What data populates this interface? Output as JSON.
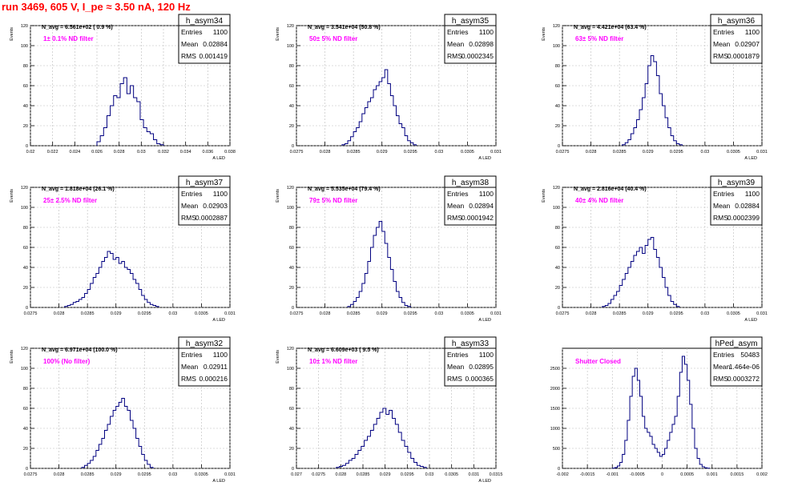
{
  "page": {
    "title": "run 3469,   605 V, I_pe ≈ 3.50 nA, 120 Hz"
  },
  "chart_data": [
    {
      "type": "histogram",
      "title": "h_asym34",
      "nav": "N_avg = 6.561e+02 ( 0.9 %)",
      "annotation": "1± 0.1% ND filter",
      "annotation_color": "#ff00ff",
      "stats": [
        [
          "Entries",
          "1100"
        ],
        [
          "Mean",
          "0.02884"
        ],
        [
          "RMS",
          "0.001419"
        ]
      ],
      "xlabel": "A_LED",
      "ylabel": "Events",
      "xlim": [
        0.02,
        0.038
      ],
      "ylim": [
        0,
        120
      ],
      "xticks": [
        0.02,
        0.022,
        0.024,
        0.026,
        0.028,
        0.03,
        0.032,
        0.034,
        0.036,
        0.038
      ],
      "xticklabels": [
        "0.02",
        "0.022",
        "0.024",
        "0.026",
        "0.028",
        "0.03",
        "0.032",
        "0.034",
        "0.036",
        "0.038"
      ],
      "yticks": [
        0,
        20,
        40,
        60,
        80,
        100,
        120
      ],
      "bins_x": [
        0.026,
        0.0263,
        0.0266,
        0.0269,
        0.0272,
        0.0275,
        0.0278,
        0.0281,
        0.0284,
        0.0287,
        0.029,
        0.0293,
        0.0296,
        0.0299,
        0.0302,
        0.0305,
        0.0308,
        0.0311,
        0.0314,
        0.0317
      ],
      "counts": [
        4,
        10,
        18,
        30,
        40,
        50,
        48,
        62,
        68,
        52,
        60,
        48,
        44,
        26,
        18,
        14,
        12,
        6,
        2,
        1
      ],
      "line_color": "#000080"
    },
    {
      "type": "histogram",
      "title": "h_asym35",
      "nav": "N_avg = 3.541e+04 (50.8 %)",
      "annotation": "50± 5% ND filter",
      "annotation_color": "#ff00ff",
      "stats": [
        [
          "Entries",
          "1100"
        ],
        [
          "Mean",
          "0.02898"
        ],
        [
          "RMS",
          "0.0002345"
        ]
      ],
      "xlabel": "A_LED",
      "ylabel": "Events",
      "xlim": [
        0.0275,
        0.031
      ],
      "ylim": [
        0,
        120
      ],
      "xticks": [
        0.0275,
        0.028,
        0.0285,
        0.029,
        0.0295,
        0.03,
        0.0305,
        0.031
      ],
      "xticklabels": [
        "0.0275",
        "0.028",
        "0.0285",
        "0.029",
        "0.0295",
        "0.03",
        "0.0305",
        "0.031"
      ],
      "yticks": [
        0,
        20,
        40,
        60,
        80,
        100,
        120
      ],
      "bins_x": [
        0.0283,
        0.02835,
        0.0284,
        0.02845,
        0.0285,
        0.02855,
        0.0286,
        0.02865,
        0.0287,
        0.02875,
        0.0288,
        0.02885,
        0.0289,
        0.02895,
        0.029,
        0.02905,
        0.0291,
        0.02915,
        0.0292,
        0.02925,
        0.0293,
        0.02935,
        0.0294,
        0.02945,
        0.0295,
        0.02955
      ],
      "counts": [
        1,
        2,
        5,
        9,
        14,
        18,
        24,
        32,
        38,
        44,
        48,
        56,
        60,
        64,
        68,
        76,
        62,
        50,
        40,
        30,
        22,
        18,
        10,
        5,
        3,
        1
      ],
      "line_color": "#000080"
    },
    {
      "type": "histogram",
      "title": "h_asym36",
      "nav": "N_avg = 4.421e+04 (63.4 %)",
      "annotation": "63± 5% ND filter",
      "annotation_color": "#ff00ff",
      "stats": [
        [
          "Entries",
          "1100"
        ],
        [
          "Mean",
          "0.02907"
        ],
        [
          "RMS",
          "0.0001879"
        ]
      ],
      "xlabel": "A_LED",
      "ylabel": "Events",
      "xlim": [
        0.0275,
        0.031
      ],
      "ylim": [
        0,
        120
      ],
      "xticks": [
        0.0275,
        0.028,
        0.0285,
        0.029,
        0.0295,
        0.03,
        0.0305,
        0.031
      ],
      "xticklabels": [
        "0.0275",
        "0.028",
        "0.0285",
        "0.029",
        "0.0295",
        "0.03",
        "0.0305",
        "0.031"
      ],
      "yticks": [
        0,
        20,
        40,
        60,
        80,
        100,
        120
      ],
      "bins_x": [
        0.02855,
        0.0286,
        0.02865,
        0.0287,
        0.02875,
        0.0288,
        0.02885,
        0.0289,
        0.02895,
        0.029,
        0.02905,
        0.0291,
        0.02915,
        0.0292,
        0.02925,
        0.0293,
        0.02935,
        0.0294,
        0.02945,
        0.0295,
        0.02955
      ],
      "counts": [
        1,
        3,
        6,
        12,
        18,
        26,
        36,
        48,
        62,
        80,
        90,
        84,
        70,
        52,
        40,
        28,
        18,
        10,
        5,
        2,
        1
      ],
      "line_color": "#000080"
    },
    {
      "type": "histogram",
      "title": "h_asym37",
      "nav": "N_avg = 1.818e+04 (26.1 %)",
      "annotation": "25± 2.5% ND filter",
      "annotation_color": "#ff00ff",
      "stats": [
        [
          "Entries",
          "1100"
        ],
        [
          "Mean",
          "0.02903"
        ],
        [
          "RMS",
          "0.0002887"
        ]
      ],
      "xlabel": "A_LED",
      "ylabel": "Events",
      "xlim": [
        0.0275,
        0.031
      ],
      "ylim": [
        0,
        120
      ],
      "xticks": [
        0.0275,
        0.028,
        0.0285,
        0.029,
        0.0295,
        0.03,
        0.0305,
        0.031
      ],
      "xticklabels": [
        "0.0275",
        "0.028",
        "0.0285",
        "0.029",
        "0.0295",
        "0.03",
        "0.0305",
        "0.031"
      ],
      "yticks": [
        0,
        20,
        40,
        60,
        80,
        100,
        120
      ],
      "bins_x": [
        0.0281,
        0.02815,
        0.0282,
        0.02825,
        0.0283,
        0.02835,
        0.0284,
        0.02845,
        0.0285,
        0.02855,
        0.0286,
        0.02865,
        0.0287,
        0.02875,
        0.0288,
        0.02885,
        0.0289,
        0.02895,
        0.029,
        0.02905,
        0.0291,
        0.02915,
        0.0292,
        0.02925,
        0.0293,
        0.02935,
        0.0294,
        0.02945,
        0.0295,
        0.02955,
        0.0296,
        0.02965,
        0.0297
      ],
      "counts": [
        1,
        2,
        3,
        5,
        6,
        8,
        10,
        14,
        18,
        24,
        30,
        34,
        40,
        46,
        50,
        56,
        54,
        48,
        50,
        44,
        46,
        40,
        38,
        34,
        28,
        24,
        18,
        12,
        8,
        5,
        3,
        2,
        1
      ],
      "line_color": "#000080"
    },
    {
      "type": "histogram",
      "title": "h_asym38",
      "nav": "N_avg = 5.535e+04 (79.4 %)",
      "annotation": "79± 5% ND filter",
      "annotation_color": "#ff00ff",
      "stats": [
        [
          "Entries",
          "1100"
        ],
        [
          "Mean",
          "0.02894"
        ],
        [
          "RMS",
          "0.0001942"
        ]
      ],
      "xlabel": "A_LED",
      "ylabel": "Events",
      "xlim": [
        0.0275,
        0.031
      ],
      "ylim": [
        0,
        120
      ],
      "xticks": [
        0.0275,
        0.028,
        0.0285,
        0.029,
        0.0295,
        0.03,
        0.0305,
        0.031
      ],
      "xticklabels": [
        "0.0275",
        "0.028",
        "0.0285",
        "0.029",
        "0.0295",
        "0.03",
        "0.0305",
        "0.031"
      ],
      "yticks": [
        0,
        20,
        40,
        60,
        80,
        100,
        120
      ],
      "bins_x": [
        0.0284,
        0.02845,
        0.0285,
        0.02855,
        0.0286,
        0.02865,
        0.0287,
        0.02875,
        0.0288,
        0.02885,
        0.0289,
        0.02895,
        0.029,
        0.02905,
        0.0291,
        0.02915,
        0.0292,
        0.02925,
        0.0293,
        0.02935,
        0.0294,
        0.02945
      ],
      "counts": [
        1,
        3,
        6,
        10,
        16,
        24,
        34,
        46,
        60,
        72,
        80,
        86,
        76,
        64,
        50,
        38,
        26,
        16,
        10,
        5,
        2,
        1
      ],
      "line_color": "#000080"
    },
    {
      "type": "histogram",
      "title": "h_asym39",
      "nav": "N_avg = 2.816e+04 (40.4 %)",
      "annotation": "40± 4% ND filter",
      "annotation_color": "#ff00ff",
      "stats": [
        [
          "Entries",
          "1100"
        ],
        [
          "Mean",
          "0.02884"
        ],
        [
          "RMS",
          "0.0002399"
        ]
      ],
      "xlabel": "A_LED",
      "ylabel": "Events",
      "xlim": [
        0.0275,
        0.031
      ],
      "ylim": [
        0,
        120
      ],
      "xticks": [
        0.0275,
        0.028,
        0.0285,
        0.029,
        0.0295,
        0.03,
        0.0305,
        0.031
      ],
      "xticklabels": [
        "0.0275",
        "0.028",
        "0.0285",
        "0.029",
        "0.0295",
        "0.03",
        "0.0305",
        "0.031"
      ],
      "yticks": [
        0,
        20,
        40,
        60,
        80,
        100,
        120
      ],
      "bins_x": [
        0.0282,
        0.02825,
        0.0283,
        0.02835,
        0.0284,
        0.02845,
        0.0285,
        0.02855,
        0.0286,
        0.02865,
        0.0287,
        0.02875,
        0.0288,
        0.02885,
        0.0289,
        0.02895,
        0.029,
        0.02905,
        0.0291,
        0.02915,
        0.0292,
        0.02925,
        0.0293,
        0.02935,
        0.0294,
        0.02945,
        0.0295
      ],
      "counts": [
        1,
        2,
        4,
        8,
        12,
        16,
        22,
        28,
        34,
        40,
        46,
        52,
        56,
        60,
        54,
        62,
        68,
        70,
        58,
        50,
        40,
        30,
        20,
        12,
        6,
        3,
        1
      ],
      "line_color": "#000080"
    },
    {
      "type": "histogram",
      "title": "h_asym32",
      "nav": "N_avg = 6.971e+04 (100.0 %)",
      "annotation": "100% (No filter)",
      "annotation_color": "#ff00ff",
      "stats": [
        [
          "Entries",
          "1100"
        ],
        [
          "Mean",
          "0.02911"
        ],
        [
          "RMS",
          "0.000216"
        ]
      ],
      "xlabel": "A_LED",
      "ylabel": "Events",
      "xlim": [
        0.0275,
        0.031
      ],
      "ylim": [
        0,
        120
      ],
      "xticks": [
        0.0275,
        0.028,
        0.0285,
        0.029,
        0.0295,
        0.03,
        0.0305,
        0.031
      ],
      "xticklabels": [
        "0.0275",
        "0.028",
        "0.0285",
        "0.029",
        "0.0295",
        "0.03",
        "0.0305",
        "0.031"
      ],
      "yticks": [
        0,
        20,
        40,
        60,
        80,
        100,
        120
      ],
      "bins_x": [
        0.0284,
        0.02845,
        0.0285,
        0.02855,
        0.0286,
        0.02865,
        0.0287,
        0.02875,
        0.0288,
        0.02885,
        0.0289,
        0.02895,
        0.029,
        0.02905,
        0.0291,
        0.02915,
        0.0292,
        0.02925,
        0.0293,
        0.02935,
        0.0294,
        0.02945,
        0.0295,
        0.02955,
        0.0296
      ],
      "counts": [
        1,
        3,
        5,
        8,
        12,
        18,
        24,
        30,
        38,
        44,
        52,
        58,
        62,
        66,
        70,
        62,
        58,
        48,
        40,
        30,
        22,
        14,
        8,
        4,
        1
      ],
      "line_color": "#000080"
    },
    {
      "type": "histogram",
      "title": "h_asym33",
      "nav": "N_avg = 6.609e+03 ( 9.5 %)",
      "annotation": "10± 1% ND filter",
      "annotation_color": "#ff00ff",
      "stats": [
        [
          "Entries",
          "1100"
        ],
        [
          "Mean",
          "0.02895"
        ],
        [
          "RMS",
          "0.000365"
        ]
      ],
      "xlabel": "A_LED",
      "ylabel": "Events",
      "xlim": [
        0.027,
        0.0315
      ],
      "ylim": [
        0,
        120
      ],
      "xticks": [
        0.027,
        0.0275,
        0.028,
        0.0285,
        0.029,
        0.0295,
        0.03,
        0.0305,
        0.031,
        0.0315
      ],
      "xticklabels": [
        "0.027",
        "0.0275",
        "0.028",
        "0.0285",
        "0.029",
        "0.0295",
        "0.03",
        "0.0305",
        "0.031",
        "0.0315"
      ],
      "yticks": [
        0,
        20,
        40,
        60,
        80,
        100,
        120
      ],
      "bins_x": [
        0.0279,
        0.02797,
        0.02804,
        0.02811,
        0.02818,
        0.02825,
        0.02832,
        0.02839,
        0.02846,
        0.02853,
        0.0286,
        0.02867,
        0.02874,
        0.02881,
        0.02888,
        0.02895,
        0.02902,
        0.02909,
        0.02916,
        0.02923,
        0.0293,
        0.02937,
        0.02944,
        0.02951,
        0.02958,
        0.02965,
        0.02972,
        0.02979,
        0.02986
      ],
      "counts": [
        1,
        2,
        3,
        5,
        8,
        10,
        14,
        18,
        22,
        28,
        32,
        38,
        44,
        50,
        56,
        60,
        54,
        58,
        50,
        44,
        36,
        28,
        22,
        16,
        10,
        6,
        3,
        2,
        1
      ],
      "line_color": "#000080"
    },
    {
      "type": "histogram",
      "title": "hPed_asym",
      "nav": "",
      "annotation": "Shutter Closed",
      "annotation_color": "#ff00ff",
      "stats": [
        [
          "Entries",
          "50483"
        ],
        [
          "Mean",
          "1.464e-06"
        ],
        [
          "RMS",
          "0.0003272"
        ]
      ],
      "xlabel": "",
      "ylabel": "",
      "xlim": [
        -0.002,
        0.002
      ],
      "ylim": [
        0,
        3000
      ],
      "xticks": [
        -0.002,
        -0.0015,
        -0.001,
        -0.0005,
        0,
        0.0005,
        0.001,
        0.0015,
        0.002
      ],
      "xticklabels": [
        "-0.002",
        "-0.0015",
        "-0.001",
        "-0.0005",
        "0",
        "0.0005",
        "0.001",
        "0.0015",
        "0.002"
      ],
      "yticks": [
        0,
        500,
        1000,
        1500,
        2000,
        2500
      ],
      "bins_x": [
        -0.001,
        -0.00095,
        -0.0009,
        -0.00085,
        -0.0008,
        -0.00075,
        -0.0007,
        -0.00065,
        -0.0006,
        -0.00055,
        -0.0005,
        -0.00045,
        -0.0004,
        -0.00035,
        -0.0003,
        -0.00025,
        -0.0002,
        -0.00015,
        -0.0001,
        -5e-05,
        0.0,
        5e-05,
        0.0001,
        0.00015,
        0.0002,
        0.00025,
        0.0003,
        0.00035,
        0.0004,
        0.00045,
        0.0005,
        0.00055,
        0.0006,
        0.00065,
        0.0007,
        0.00075,
        0.0008,
        0.00085,
        0.0009
      ],
      "counts": [
        5,
        20,
        60,
        150,
        350,
        700,
        1200,
        1800,
        2300,
        2500,
        2200,
        1800,
        1300,
        1000,
        900,
        800,
        600,
        500,
        400,
        300,
        350,
        500,
        700,
        900,
        1100,
        1300,
        1800,
        2400,
        2800,
        2600,
        2200,
        1600,
        1000,
        500,
        250,
        100,
        40,
        15,
        5
      ],
      "line_color": "#000080"
    }
  ]
}
